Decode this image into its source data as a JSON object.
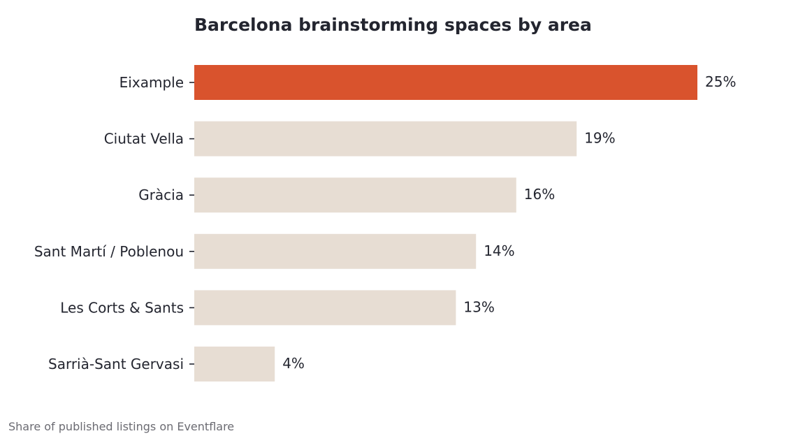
{
  "chart_data": {
    "type": "bar",
    "orientation": "horizontal",
    "title": "Barcelona brainstorming spaces by area",
    "categories": [
      "Eixample",
      "Ciutat Vella",
      "Gràcia",
      "Sant Martí / Poblenou",
      "Les Corts & Sants",
      "Sarrià-Sant Gervasi"
    ],
    "values": [
      25,
      19,
      16,
      14,
      13,
      4
    ],
    "value_labels": [
      "25%",
      "19%",
      "16%",
      "14%",
      "13%",
      "4%"
    ],
    "xlim": [
      0,
      25
    ],
    "grid": false,
    "highlight_color": "#d9532d",
    "bar_color": "#e7ddd3",
    "text_color": "#23252f"
  },
  "caption": "Share of published listings on Eventflare"
}
